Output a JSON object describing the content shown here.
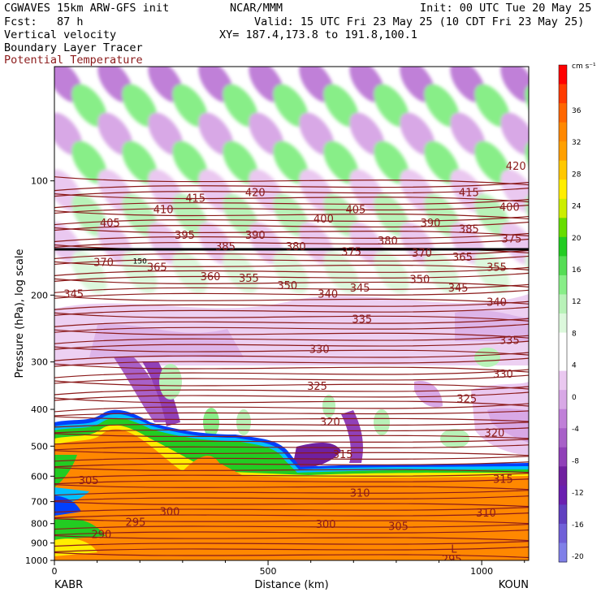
{
  "header": {
    "model": "CGWAVES 15km ARW-GFS init",
    "institution": "NCAR/MMM",
    "init": "Init: 00 UTC Tue 20 May 25",
    "fcst": "Fcst:   87 h",
    "valid": "Valid: 15 UTC Fri 23 May 25 (10 CDT Fri 23 May 25)",
    "field1": "Vertical velocity",
    "field2": "Boundary Layer Tracer",
    "field3": "Potential Temperature",
    "xy": "XY= 187.4,173.8 to 191.8,100.1"
  },
  "colors": {
    "theta_line": "#8b1a1a",
    "tracer_deep": "#ff8c00",
    "tracer_mid": "#ffd700",
    "tracer_edge": "#2e8b57",
    "updraft": "#7cfc7c",
    "downdraft": "#c080d0"
  },
  "chart_data": {
    "type": "cross-section",
    "xlabel": "Distance (km)",
    "ylabel": "Pressure (hPa), log scale",
    "y_scale": "log",
    "x_ticks": [
      {
        "value": 0,
        "label": "0"
      },
      {
        "value": 500,
        "label": "500"
      },
      {
        "value": 1000,
        "label": "1000"
      }
    ],
    "xlim": [
      0,
      1110
    ],
    "ylim": [
      1000,
      50
    ],
    "y_ticks": [
      100,
      200,
      300,
      400,
      500,
      600,
      700,
      800,
      900,
      1000
    ],
    "endpoint_left": "KABR",
    "endpoint_right": "KOUN",
    "velocity_units": "cm s⁻¹",
    "colorbar_labels": [
      "36",
      "32",
      "28",
      "24",
      "20",
      "16",
      "12",
      "8",
      "4",
      "0",
      "-4",
      "-8",
      "-12",
      "-16",
      "-20"
    ],
    "colorbar_colors": [
      "#ff0000",
      "#ff3b00",
      "#ff6600",
      "#ff8800",
      "#ffa000",
      "#ffc800",
      "#ffee00",
      "#ccee00",
      "#66dd00",
      "#22cc22",
      "#55dd55",
      "#88ee88",
      "#b8f2b8",
      "#dcf8dc",
      "#ffffff",
      "#ffffff",
      "#eac8f0",
      "#d8a8e6",
      "#c080d8",
      "#a860c8",
      "#9040b8",
      "#7020a0",
      "#6a1fb0",
      "#6040c0",
      "#7060d8",
      "#8080e8"
    ],
    "theta_labels": [
      {
        "text": "420",
        "x": 470,
        "p": 108
      },
      {
        "text": "420",
        "x": 1080,
        "p": 92
      },
      {
        "text": "415",
        "x": 330,
        "p": 112
      },
      {
        "text": "415",
        "x": 970,
        "p": 108
      },
      {
        "text": "410",
        "x": 255,
        "p": 120
      },
      {
        "text": "405",
        "x": 130,
        "p": 130
      },
      {
        "text": "405",
        "x": 705,
        "p": 120
      },
      {
        "text": "400",
        "x": 630,
        "p": 127
      },
      {
        "text": "400",
        "x": 1065,
        "p": 118
      },
      {
        "text": "395",
        "x": 305,
        "p": 140
      },
      {
        "text": "390",
        "x": 470,
        "p": 140
      },
      {
        "text": "390",
        "x": 880,
        "p": 130
      },
      {
        "text": "385",
        "x": 400,
        "p": 150
      },
      {
        "text": "385",
        "x": 970,
        "p": 135
      },
      {
        "text": "380",
        "x": 565,
        "p": 150
      },
      {
        "text": "380",
        "x": 780,
        "p": 145
      },
      {
        "text": "375",
        "x": 695,
        "p": 155
      },
      {
        "text": "375",
        "x": 1070,
        "p": 143
      },
      {
        "text": "370",
        "x": 115,
        "p": 165
      },
      {
        "text": "370",
        "x": 860,
        "p": 156
      },
      {
        "text": "365",
        "x": 240,
        "p": 170
      },
      {
        "text": "365",
        "x": 955,
        "p": 160
      },
      {
        "text": "360",
        "x": 365,
        "p": 180
      },
      {
        "text": "355",
        "x": 455,
        "p": 182
      },
      {
        "text": "355",
        "x": 1035,
        "p": 170
      },
      {
        "text": "350",
        "x": 545,
        "p": 190
      },
      {
        "text": "350",
        "x": 855,
        "p": 183
      },
      {
        "text": "345",
        "x": 45,
        "p": 200
      },
      {
        "text": "345",
        "x": 715,
        "p": 193
      },
      {
        "text": "345",
        "x": 945,
        "p": 193
      },
      {
        "text": "340",
        "x": 640,
        "p": 200
      },
      {
        "text": "340",
        "x": 1035,
        "p": 210
      },
      {
        "text": "335",
        "x": 720,
        "p": 233
      },
      {
        "text": "335",
        "x": 1065,
        "p": 265
      },
      {
        "text": "330",
        "x": 620,
        "p": 280
      },
      {
        "text": "330",
        "x": 1050,
        "p": 325
      },
      {
        "text": "325",
        "x": 615,
        "p": 350
      },
      {
        "text": "325",
        "x": 965,
        "p": 378
      },
      {
        "text": "320",
        "x": 645,
        "p": 435
      },
      {
        "text": "320",
        "x": 1030,
        "p": 465
      },
      {
        "text": "315",
        "x": 675,
        "p": 530
      },
      {
        "text": "315",
        "x": 1050,
        "p": 615
      },
      {
        "text": "310",
        "x": 715,
        "p": 670
      },
      {
        "text": "310",
        "x": 1010,
        "p": 755
      },
      {
        "text": "305",
        "x": 80,
        "p": 620
      },
      {
        "text": "305",
        "x": 805,
        "p": 820
      },
      {
        "text": "300",
        "x": 270,
        "p": 750
      },
      {
        "text": "300",
        "x": 635,
        "p": 810
      },
      {
        "text": "295",
        "x": 190,
        "p": 800
      },
      {
        "text": "295",
        "x": 930,
        "p": 1000
      },
      {
        "text": "290",
        "x": 110,
        "p": 860
      }
    ],
    "low_marker": {
      "text": "L",
      "x": 935,
      "p": 935
    },
    "max_marker": {
      "text": "150",
      "x": 200,
      "p": 162
    }
  }
}
